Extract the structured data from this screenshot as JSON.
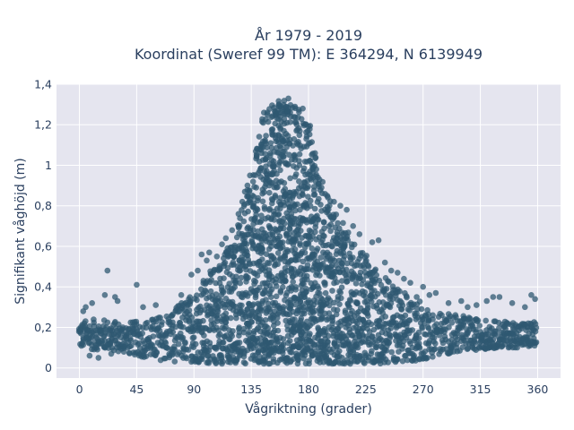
{
  "chart_data": {
    "type": "scatter",
    "title_line1": "År 1979 - 2019",
    "title_line2": "Koordinat (Sweref 99 TM): E 364294, N 6139949",
    "xlabel": "Vågriktning (grader)",
    "ylabel": "Signifikant våghöjd (m)",
    "xlim": [
      -18,
      378
    ],
    "ylim": [
      -0.05,
      1.4
    ],
    "xticks": [
      0,
      45,
      90,
      135,
      180,
      225,
      270,
      315,
      360
    ],
    "yticks": [
      0,
      0.2,
      0.4,
      0.6,
      0.8,
      1,
      1.2,
      1.4
    ],
    "ytick_labels": [
      "0",
      "0,2",
      "0,4",
      "0,6",
      "0,8",
      "1",
      "1,2",
      "1,4"
    ],
    "grid": true,
    "marker_color": "#2f5872",
    "background_color": "#e5e5ef",
    "envelope": {
      "x": [
        0,
        10,
        20,
        30,
        45,
        60,
        75,
        90,
        100,
        110,
        120,
        125,
        130,
        135,
        140,
        145,
        150,
        155,
        160,
        165,
        170,
        175,
        180,
        185,
        190,
        195,
        200,
        210,
        220,
        225,
        230,
        240,
        250,
        260,
        270,
        280,
        290,
        300,
        315,
        330,
        345,
        360
      ],
      "upper": [
        0.23,
        0.24,
        0.24,
        0.23,
        0.23,
        0.25,
        0.3,
        0.38,
        0.46,
        0.54,
        0.65,
        0.72,
        0.82,
        0.95,
        1.15,
        1.27,
        1.31,
        1.32,
        1.33,
        1.33,
        1.32,
        1.3,
        1.22,
        1.08,
        0.95,
        0.86,
        0.78,
        0.68,
        0.6,
        0.56,
        0.52,
        0.45,
        0.4,
        0.36,
        0.32,
        0.28,
        0.27,
        0.26,
        0.24,
        0.23,
        0.23,
        0.23
      ],
      "lower": [
        0.1,
        0.09,
        0.09,
        0.08,
        0.06,
        0.04,
        0.03,
        0.03,
        0.02,
        0.02,
        0.02,
        0.02,
        0.02,
        0.02,
        0.02,
        0.02,
        0.02,
        0.02,
        0.02,
        0.02,
        0.02,
        0.02,
        0.02,
        0.02,
        0.02,
        0.02,
        0.02,
        0.02,
        0.02,
        0.02,
        0.02,
        0.02,
        0.03,
        0.03,
        0.04,
        0.06,
        0.07,
        0.08,
        0.09,
        0.1,
        0.1,
        0.1
      ]
    },
    "outliers": [
      [
        10,
        0.32
      ],
      [
        20,
        0.36
      ],
      [
        22,
        0.48
      ],
      [
        28,
        0.35
      ],
      [
        45,
        0.41
      ],
      [
        50,
        0.3
      ],
      [
        60,
        0.31
      ],
      [
        80,
        0.36
      ],
      [
        88,
        0.46
      ],
      [
        93,
        0.48
      ],
      [
        96,
        0.56
      ],
      [
        100,
        0.53
      ],
      [
        102,
        0.57
      ],
      [
        108,
        0.55
      ],
      [
        112,
        0.61
      ],
      [
        115,
        0.64
      ],
      [
        120,
        0.68
      ],
      [
        125,
        0.76
      ],
      [
        128,
        0.82
      ],
      [
        130,
        0.87
      ],
      [
        132,
        0.9
      ],
      [
        134,
        0.95
      ],
      [
        200,
        0.82
      ],
      [
        205,
        0.8
      ],
      [
        210,
        0.78
      ],
      [
        215,
        0.7
      ],
      [
        220,
        0.66
      ],
      [
        230,
        0.62
      ],
      [
        235,
        0.63
      ],
      [
        240,
        0.52
      ],
      [
        245,
        0.48
      ],
      [
        250,
        0.47
      ],
      [
        255,
        0.44
      ],
      [
        260,
        0.42
      ],
      [
        265,
        0.35
      ],
      [
        270,
        0.4
      ],
      [
        275,
        0.36
      ],
      [
        280,
        0.37
      ],
      [
        290,
        0.32
      ],
      [
        300,
        0.33
      ],
      [
        305,
        0.3
      ],
      [
        312,
        0.31
      ],
      [
        320,
        0.33
      ],
      [
        325,
        0.35
      ],
      [
        330,
        0.35
      ],
      [
        340,
        0.32
      ],
      [
        350,
        0.3
      ],
      [
        355,
        0.36
      ],
      [
        358,
        0.34
      ],
      [
        8,
        0.06
      ],
      [
        15,
        0.05
      ],
      [
        25,
        0.07
      ],
      [
        5,
        0.3
      ],
      [
        30,
        0.33
      ],
      [
        3,
        0.28
      ]
    ]
  }
}
